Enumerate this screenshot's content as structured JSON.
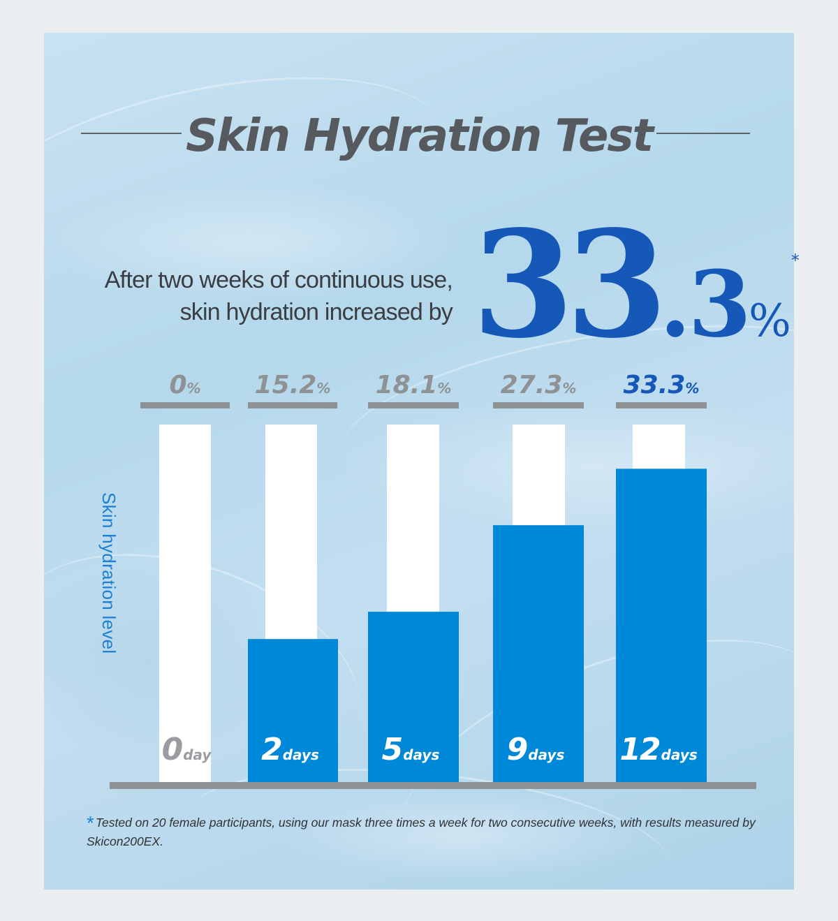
{
  "title": "Skin Hydration Test",
  "headline": {
    "line1": "After two weeks of continuous use,",
    "line2": "skin hydration increased by",
    "big_number_int": "33",
    "big_number_dec": ".3",
    "big_number_unit": "%",
    "asterisk": "*"
  },
  "colors": {
    "title": "#565a5f",
    "accent": "#1658b8",
    "bar_fill": "#0088d8",
    "bar_bg": "#ffffff",
    "label_gray": "#8f9295",
    "rule_gray": "#8f9295"
  },
  "chart_data": {
    "type": "bar",
    "title": "",
    "ylabel": "Skin hydration level",
    "xlabel": "",
    "ylim": [
      0,
      38
    ],
    "grid": false,
    "categories": [
      {
        "num": "0",
        "unit": "day"
      },
      {
        "num": "2",
        "unit": "days"
      },
      {
        "num": "5",
        "unit": "days"
      },
      {
        "num": "9",
        "unit": "days"
      },
      {
        "num": "12",
        "unit": "days"
      }
    ],
    "values": [
      0,
      15.2,
      18.1,
      27.3,
      33.3
    ],
    "value_labels": [
      "0",
      "15.2",
      "18.1",
      "27.3",
      "33.3"
    ],
    "value_unit": "%",
    "highlight_index": 4
  },
  "footnote": {
    "star": "*",
    "text": "Tested on 20 female participants, using our mask three times a week for two consecutive weeks, with results measured by Skicon200EX."
  }
}
